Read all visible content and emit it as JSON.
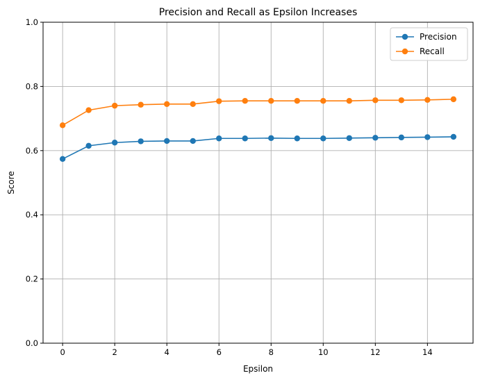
{
  "chart_data": {
    "type": "line",
    "title": "Precision and Recall as Epsilon Increases",
    "xlabel": "Epsilon",
    "ylabel": "Score",
    "xlim": [
      -0.75,
      15.75
    ],
    "ylim": [
      0,
      1
    ],
    "xticks": [
      0,
      2,
      4,
      6,
      8,
      10,
      12,
      14
    ],
    "yticks": [
      0.0,
      0.2,
      0.4,
      0.6,
      0.8,
      1.0
    ],
    "grid": true,
    "legend_position": "top-right",
    "x": [
      0,
      1,
      2,
      3,
      4,
      5,
      6,
      7,
      8,
      9,
      10,
      11,
      12,
      13,
      14,
      15
    ],
    "series": [
      {
        "name": "Precision",
        "color": "#1f77b4",
        "marker": "circle",
        "values": [
          0.574,
          0.615,
          0.625,
          0.629,
          0.63,
          0.63,
          0.638,
          0.638,
          0.639,
          0.638,
          0.638,
          0.639,
          0.64,
          0.641,
          0.642,
          0.643
        ]
      },
      {
        "name": "Recall",
        "color": "#ff7f0e",
        "marker": "circle",
        "values": [
          0.679,
          0.726,
          0.74,
          0.743,
          0.745,
          0.745,
          0.754,
          0.755,
          0.755,
          0.755,
          0.755,
          0.755,
          0.757,
          0.757,
          0.758,
          0.76
        ]
      }
    ]
  }
}
